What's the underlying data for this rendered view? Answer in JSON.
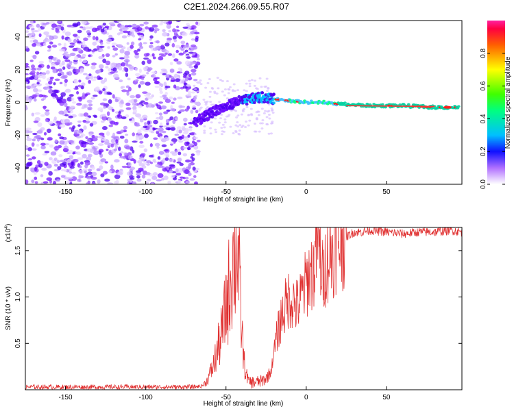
{
  "title": "C2E1.2024.266.09.55.R07",
  "colors": {
    "snr_line": "#e03030",
    "axis": "#000000"
  },
  "chart_data": [
    {
      "type": "heatmap",
      "xlabel": "Height of straight line (km)",
      "ylabel": "Frequency (Hz)",
      "xlim": [
        -175,
        97
      ],
      "ylim": [
        -50,
        50
      ],
      "xticks": [
        -150,
        -100,
        -50,
        0,
        50
      ],
      "yticks": [
        -40,
        -20,
        0,
        20,
        40
      ],
      "ridge": {
        "x": [
          -70,
          -65,
          -60,
          -55,
          -50,
          -45,
          -40,
          -35,
          -30,
          -25,
          -20,
          -10,
          0,
          10,
          20,
          40,
          60,
          80,
          95
        ],
        "y": [
          -12,
          -10,
          -7,
          -4,
          -3,
          0,
          1,
          2,
          3,
          3,
          2,
          1,
          0,
          0,
          -1,
          -2,
          -2,
          -3,
          -3
        ]
      },
      "colorbar": {
        "label": "Normalized spectral amplitude",
        "range": [
          0,
          1
        ],
        "ticks": [
          0.0,
          0.2,
          0.4,
          0.6,
          0.8
        ]
      }
    },
    {
      "type": "line",
      "xlabel": "Height of straight line (km)",
      "ylabel": "SNR (10 * v/v)",
      "yscale_label": "(x10",
      "yscale_exp": "4",
      "yscale_suffix": ")",
      "xlim": [
        -175,
        97
      ],
      "ylim": [
        0,
        17500
      ],
      "xticks": [
        -150,
        -100,
        -50,
        0,
        50
      ],
      "yticks": [
        5000,
        10000,
        15000
      ],
      "ytick_labels": [
        "0.5",
        "1.0",
        "1.5"
      ],
      "series": [
        {
          "x": [
            -175,
            -150,
            -100,
            -70,
            -65,
            -62,
            -58,
            -55,
            -52,
            -50,
            -48,
            -46,
            -44,
            -43,
            -42,
            -41,
            -40,
            -39,
            -38,
            -37,
            -36,
            -35,
            -32,
            -28,
            -25,
            -22,
            -20,
            -18,
            -16,
            -14,
            -12,
            -10,
            -8,
            -6,
            -4,
            -2,
            0,
            2,
            5,
            7,
            10,
            12,
            15,
            18,
            20,
            25,
            30,
            35,
            40,
            50,
            60,
            70,
            80,
            90,
            97
          ],
          "y": [
            300,
            300,
            300,
            300,
            400,
            900,
            2500,
            4500,
            6500,
            9000,
            11000,
            13500,
            14500,
            16500,
            13000,
            9000,
            6000,
            3500,
            2000,
            1500,
            1000,
            800,
            800,
            900,
            1200,
            2000,
            4000,
            6000,
            7500,
            8500,
            9500,
            10000,
            9500,
            9000,
            9500,
            10500,
            11500,
            12500,
            13000,
            17000,
            12000,
            13500,
            14500,
            15500,
            16000,
            16500,
            17000,
            17000,
            17200,
            17000,
            16800,
            17000,
            17000,
            17200,
            17000
          ]
        }
      ]
    }
  ]
}
